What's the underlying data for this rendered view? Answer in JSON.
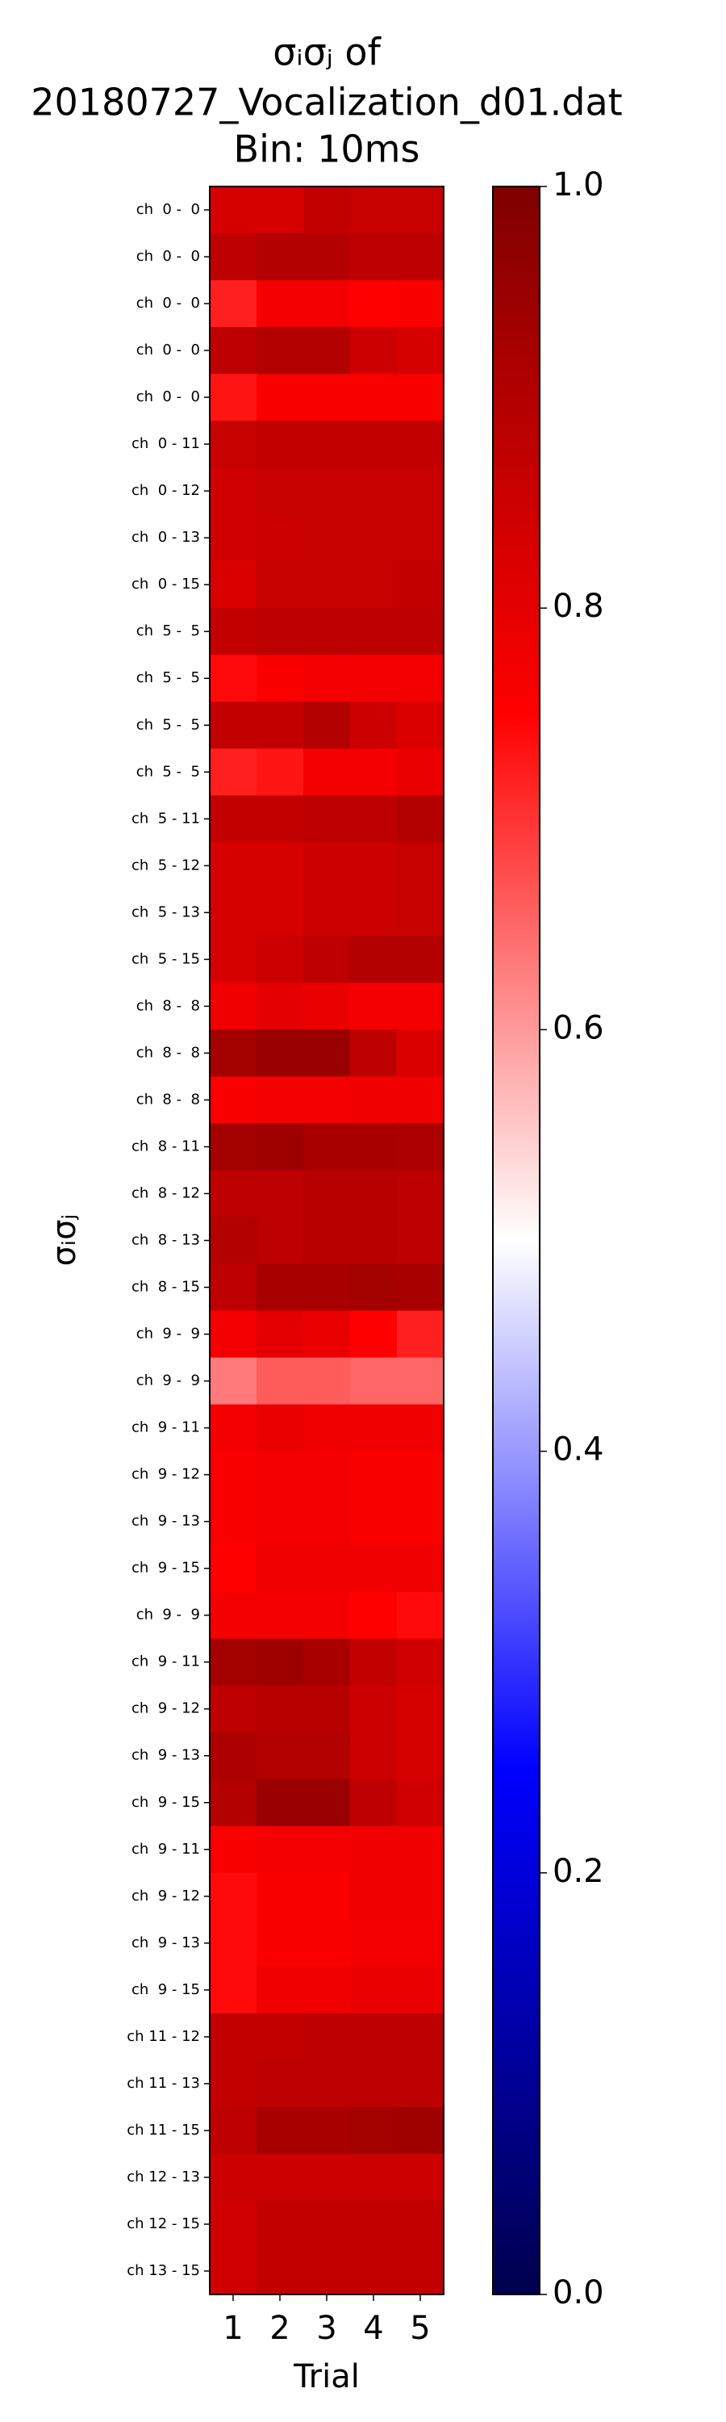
{
  "chart_data": {
    "type": "heatmap",
    "title": [
      "σᵢσⱼ of",
      "20180727_Vocalization_d01.dat",
      "Bin: 10ms"
    ],
    "xlabel": "Trial",
    "ylabel": "σᵢσⱼ",
    "categories": [
      1,
      2,
      3,
      4,
      5
    ],
    "rows": [
      "ch  0 -  0",
      "ch  0 -  0",
      "ch  0 -  0",
      "ch  0 -  0",
      "ch  0 -  0",
      "ch  0 - 11",
      "ch  0 - 12",
      "ch  0 - 13",
      "ch  0 - 15",
      "ch  5 -  5",
      "ch  5 -  5",
      "ch  5 -  5",
      "ch  5 -  5",
      "ch  5 - 11",
      "ch  5 - 12",
      "ch  5 - 13",
      "ch  5 - 15",
      "ch  8 -  8",
      "ch  8 -  8",
      "ch  8 -  8",
      "ch  8 - 11",
      "ch  8 - 12",
      "ch  8 - 13",
      "ch  8 - 15",
      "ch  9 -  9",
      "ch  9 -  9",
      "ch  9 - 11",
      "ch  9 - 12",
      "ch  9 - 13",
      "ch  9 - 15",
      "ch  9 -  9",
      "ch  9 - 11",
      "ch  9 - 12",
      "ch  9 - 13",
      "ch  9 - 15",
      "ch  9 - 11",
      "ch  9 - 12",
      "ch  9 - 13",
      "ch  9 - 15",
      "ch 11 - 12",
      "ch 11 - 13",
      "ch 11 - 15",
      "ch 12 - 13",
      "ch 12 - 15",
      "ch 13 - 15"
    ],
    "values": [
      [
        0.83,
        0.83,
        0.87,
        0.86,
        0.86
      ],
      [
        0.88,
        0.9,
        0.9,
        0.88,
        0.88
      ],
      [
        0.72,
        0.77,
        0.77,
        0.75,
        0.76
      ],
      [
        0.88,
        0.9,
        0.9,
        0.85,
        0.83
      ],
      [
        0.73,
        0.76,
        0.76,
        0.76,
        0.76
      ],
      [
        0.86,
        0.87,
        0.87,
        0.87,
        0.87
      ],
      [
        0.84,
        0.86,
        0.86,
        0.86,
        0.86
      ],
      [
        0.84,
        0.85,
        0.86,
        0.86,
        0.86
      ],
      [
        0.82,
        0.86,
        0.86,
        0.86,
        0.87
      ],
      [
        0.87,
        0.88,
        0.88,
        0.88,
        0.88
      ],
      [
        0.74,
        0.76,
        0.77,
        0.77,
        0.77
      ],
      [
        0.87,
        0.87,
        0.9,
        0.85,
        0.82
      ],
      [
        0.72,
        0.73,
        0.77,
        0.77,
        0.79
      ],
      [
        0.87,
        0.87,
        0.88,
        0.88,
        0.9
      ],
      [
        0.83,
        0.83,
        0.85,
        0.85,
        0.86
      ],
      [
        0.83,
        0.83,
        0.85,
        0.85,
        0.86
      ],
      [
        0.83,
        0.85,
        0.88,
        0.9,
        0.9
      ],
      [
        0.78,
        0.8,
        0.79,
        0.77,
        0.77
      ],
      [
        0.93,
        0.95,
        0.95,
        0.88,
        0.82
      ],
      [
        0.76,
        0.77,
        0.77,
        0.78,
        0.78
      ],
      [
        0.93,
        0.94,
        0.92,
        0.92,
        0.91
      ],
      [
        0.88,
        0.88,
        0.89,
        0.89,
        0.88
      ],
      [
        0.9,
        0.88,
        0.89,
        0.89,
        0.88
      ],
      [
        0.88,
        0.92,
        0.92,
        0.93,
        0.92
      ],
      [
        0.77,
        0.8,
        0.79,
        0.75,
        0.72
      ],
      [
        0.63,
        0.66,
        0.66,
        0.65,
        0.65
      ],
      [
        0.77,
        0.79,
        0.78,
        0.78,
        0.78
      ],
      [
        0.76,
        0.77,
        0.77,
        0.76,
        0.76
      ],
      [
        0.76,
        0.77,
        0.77,
        0.76,
        0.76
      ],
      [
        0.75,
        0.78,
        0.78,
        0.78,
        0.78
      ],
      [
        0.77,
        0.77,
        0.77,
        0.75,
        0.74
      ],
      [
        0.93,
        0.94,
        0.92,
        0.87,
        0.84
      ],
      [
        0.88,
        0.89,
        0.89,
        0.85,
        0.83
      ],
      [
        0.91,
        0.9,
        0.9,
        0.85,
        0.83
      ],
      [
        0.9,
        0.95,
        0.95,
        0.88,
        0.84
      ],
      [
        0.76,
        0.77,
        0.77,
        0.78,
        0.78
      ],
      [
        0.74,
        0.76,
        0.76,
        0.78,
        0.78
      ],
      [
        0.74,
        0.76,
        0.76,
        0.77,
        0.77
      ],
      [
        0.74,
        0.78,
        0.78,
        0.79,
        0.79
      ],
      [
        0.87,
        0.87,
        0.88,
        0.88,
        0.88
      ],
      [
        0.87,
        0.88,
        0.88,
        0.88,
        0.88
      ],
      [
        0.88,
        0.92,
        0.92,
        0.93,
        0.94
      ],
      [
        0.85,
        0.85,
        0.85,
        0.85,
        0.85
      ],
      [
        0.84,
        0.87,
        0.87,
        0.87,
        0.87
      ],
      [
        0.84,
        0.87,
        0.87,
        0.87,
        0.87
      ]
    ],
    "colormap": "seismic",
    "clim": [
      0,
      1
    ],
    "cticks": [
      {
        "value": 0,
        "label": "0.0"
      },
      {
        "value": 0.2,
        "label": "0.2"
      },
      {
        "value": 0.4,
        "label": "0.4"
      },
      {
        "value": 0.6,
        "label": "0.6"
      },
      {
        "value": 0.8,
        "label": "0.8"
      },
      {
        "value": 1,
        "label": "1.0"
      }
    ]
  }
}
